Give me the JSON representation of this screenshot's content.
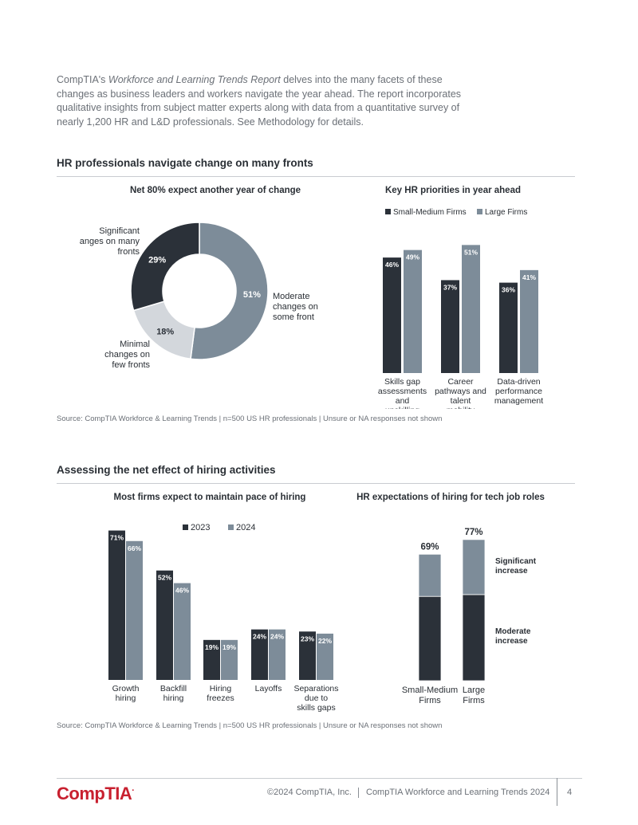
{
  "intro": {
    "part1": "CompTIA's ",
    "italic": "Workforce and Learning Trends Report",
    "part2": " delves into the many facets of these changes as business leaders and workers navigate the year ahead. The report incorporates qualitative insights from subject matter experts along with data from a quantitative survey of nearly 1,200 HR and L&D professionals. See Methodology for details."
  },
  "section1": {
    "title": "HR professionals navigate change on many fronts",
    "source": "Source: CompTIA Workforce & Learning Trends | n=500 US HR professionals | Unsure or NA responses not shown"
  },
  "section2": {
    "title": "Assessing the net effect of hiring activities",
    "source": "Source: CompTIA Workforce & Learning Trends | n=500 US HR professionals | Unsure or NA responses not shown"
  },
  "colors": {
    "dark": "#2b3139",
    "mid": "#7d8c99",
    "light": "#d3d7dc",
    "brand": "#c8202f"
  },
  "chart_data": [
    {
      "id": "donut",
      "type": "pie",
      "title": "Net 80% expect another year of change",
      "slices": [
        {
          "label": "Significant changes on many fronts",
          "value": 29,
          "value_label": "29%",
          "color": "#2b3139"
        },
        {
          "label": "Moderate changes on some front",
          "value": 51,
          "value_label": "51%",
          "color": "#7d8c99"
        },
        {
          "label": "Minimal changes on few fronts",
          "value": 18,
          "value_label": "18%",
          "color": "#d3d7dc"
        }
      ]
    },
    {
      "id": "priorities",
      "type": "bar",
      "title": "Key HR priorities in year ahead",
      "categories": [
        "Skills gap assessments and upskilling",
        "Career pathways and talent mobility",
        "Data-driven performance management"
      ],
      "series": [
        {
          "name": "Small-Medium Firms",
          "values": [
            46,
            37,
            36
          ],
          "color": "#2b3139"
        },
        {
          "name": "Large Firms",
          "values": [
            49,
            51,
            41
          ],
          "color": "#7d8c99"
        }
      ],
      "legend": "top",
      "ylim": [
        0,
        100
      ]
    },
    {
      "id": "hiring",
      "type": "bar",
      "title": "Most firms expect to maintain pace of hiring",
      "categories": [
        "Growth hiring",
        "Backfill hiring",
        "Hiring freezes",
        "Layoffs",
        "Separations due to skills gaps"
      ],
      "series": [
        {
          "name": "2023",
          "values": [
            71,
            52,
            19,
            24,
            23
          ],
          "color": "#2b3139"
        },
        {
          "name": "2024",
          "values": [
            66,
            46,
            19,
            24,
            22
          ],
          "color": "#7d8c99"
        }
      ],
      "legend": "top",
      "ylim": [
        0,
        100
      ]
    },
    {
      "id": "tech",
      "type": "bar",
      "stacked": true,
      "title": "HR expectations of hiring for tech job roles",
      "categories": [
        "Small-Medium Firms",
        "Large Firms"
      ],
      "series": [
        {
          "name": "Moderate increase",
          "values": [
            46,
            47
          ],
          "color": "#2b3139"
        },
        {
          "name": "Significant increase",
          "values": [
            23,
            30
          ],
          "color": "#7d8c99"
        }
      ],
      "totals": [
        "69%",
        "77%"
      ],
      "legend": "right"
    }
  ],
  "footer": {
    "logo": "CompTIA",
    "copyright": "©2024 CompTIA, Inc.",
    "report": "CompTIA Workforce and Learning Trends 2024",
    "page": "4"
  }
}
